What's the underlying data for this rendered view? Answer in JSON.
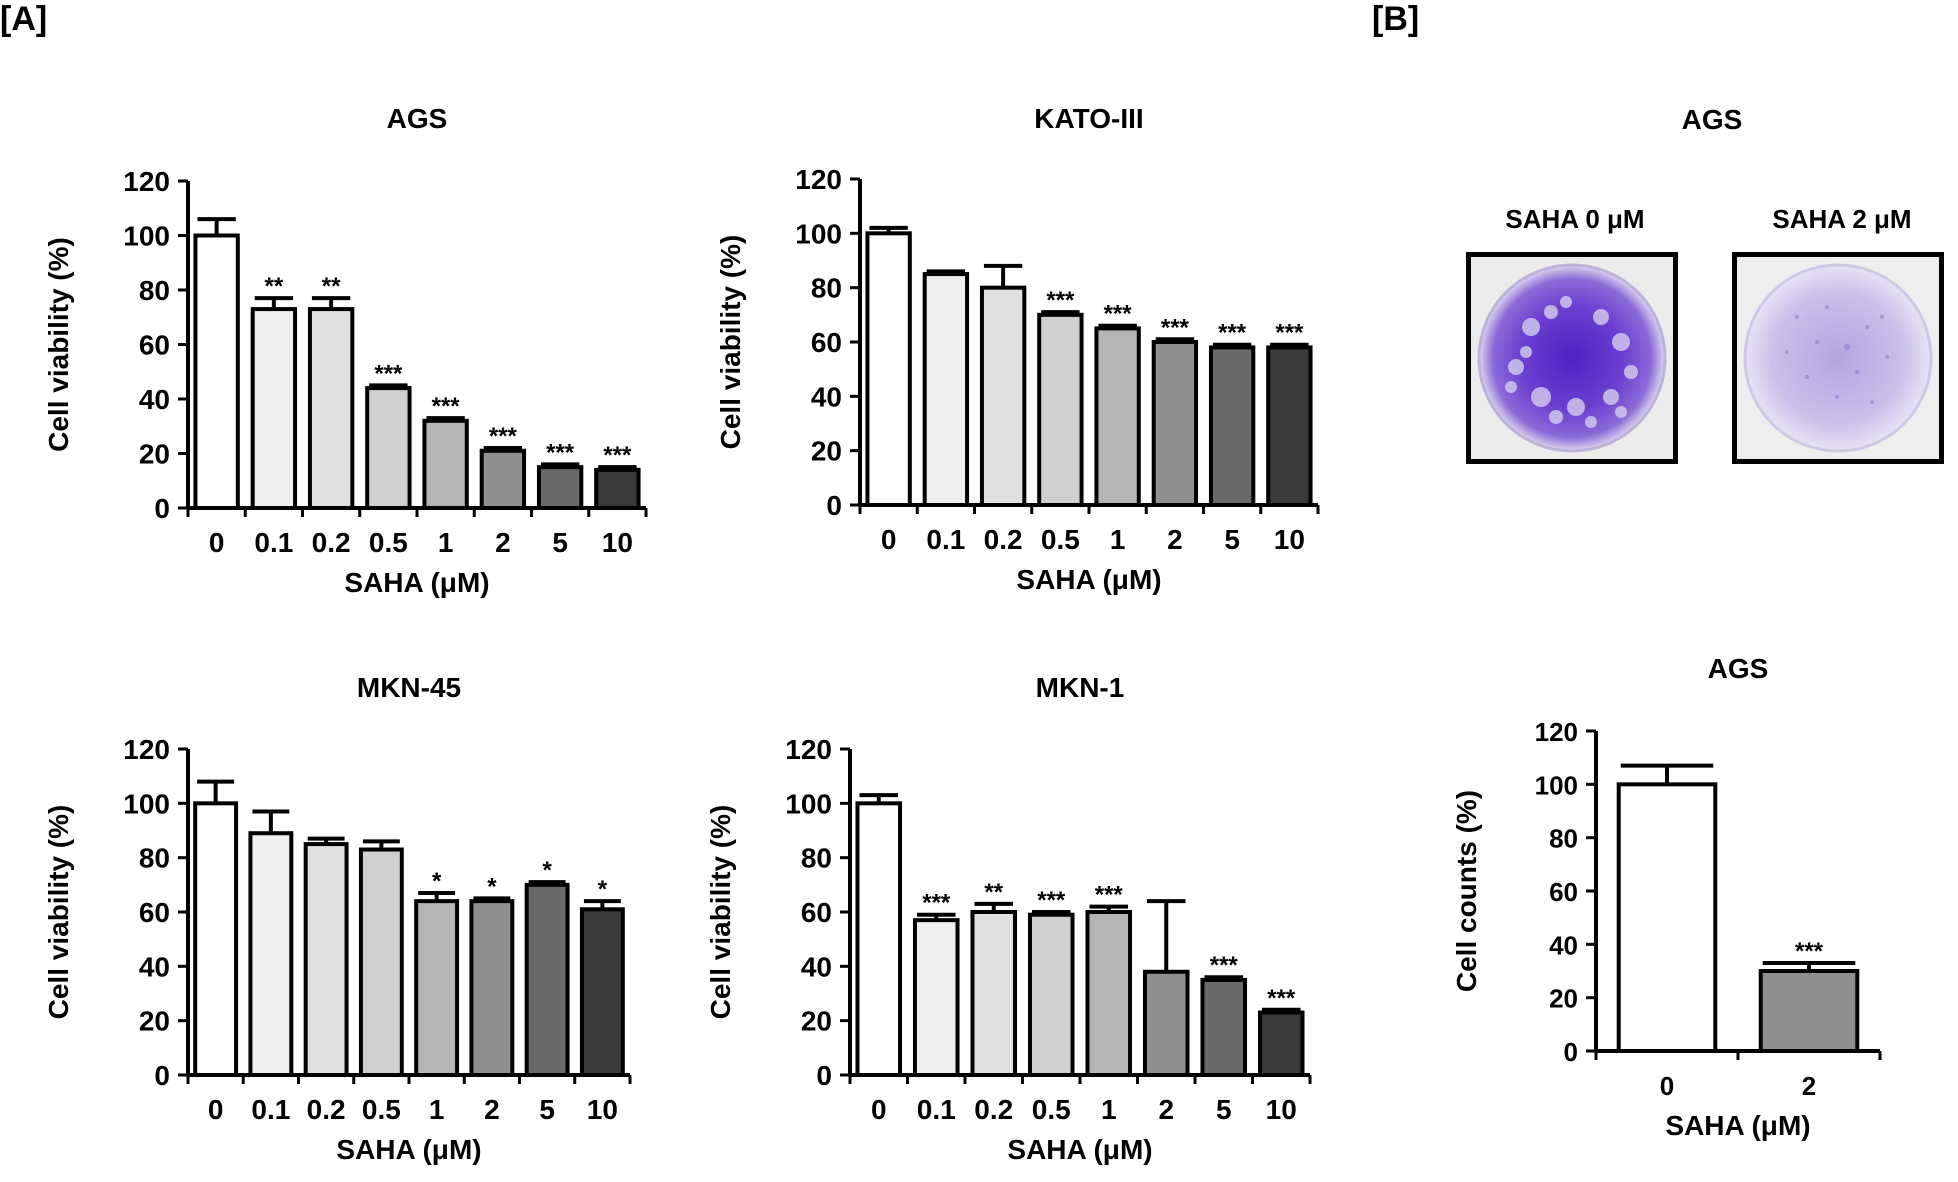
{
  "panel_labels": {
    "a": "[A]",
    "b": "[B]"
  },
  "colony_assay": {
    "title": "AGS",
    "images": [
      {
        "label": "SAHA 0 μM",
        "stain": "dense"
      },
      {
        "label": "SAHA 2 μM",
        "stain": "sparse"
      }
    ],
    "colors": {
      "dense_stain": "#6a3fd0",
      "sparse_stain": "#c3b9e6",
      "background": "#f4f4f4"
    }
  },
  "chart_data": [
    {
      "id": "ags",
      "type": "bar",
      "title": "AGS",
      "xlabel": "SAHA (μM)",
      "ylabel": "Cell viability (%)",
      "ylim": [
        0,
        120
      ],
      "yticks": [
        0,
        20,
        40,
        60,
        80,
        100,
        120
      ],
      "categories": [
        "0",
        "0.1",
        "0.2",
        "0.5",
        "1",
        "2",
        "5",
        "10"
      ],
      "values": [
        100,
        73,
        73,
        44,
        32,
        21,
        15,
        14
      ],
      "errors": [
        6,
        4,
        4,
        1,
        1,
        1,
        1,
        1
      ],
      "significance": [
        "",
        "**",
        "**",
        "***",
        "***",
        "***",
        "***",
        "***"
      ],
      "colors": [
        "#ffffff",
        "#efefef",
        "#e0e0e0",
        "#cfcfcf",
        "#b5b5b5",
        "#8f8f8f",
        "#6a6a6a",
        "#3a3a3a"
      ],
      "grid": false
    },
    {
      "id": "kato",
      "type": "bar",
      "title": "KATO-III",
      "xlabel": "SAHA (μM)",
      "ylabel": "Cell viability (%)",
      "ylim": [
        0,
        120
      ],
      "yticks": [
        0,
        20,
        40,
        60,
        80,
        100,
        120
      ],
      "categories": [
        "0",
        "0.1",
        "0.2",
        "0.5",
        "1",
        "2",
        "5",
        "10"
      ],
      "values": [
        100,
        85,
        80,
        70,
        65,
        60,
        58,
        58
      ],
      "errors": [
        2,
        1,
        8,
        1,
        1,
        1,
        1,
        1
      ],
      "significance": [
        "",
        "",
        "",
        "***",
        "***",
        "***",
        "***",
        "***"
      ],
      "colors": [
        "#ffffff",
        "#efefef",
        "#e0e0e0",
        "#cfcfcf",
        "#b5b5b5",
        "#8f8f8f",
        "#6a6a6a",
        "#3a3a3a"
      ],
      "grid": false
    },
    {
      "id": "mkn45",
      "type": "bar",
      "title": "MKN-45",
      "xlabel": "SAHA (μM)",
      "ylabel": "Cell viability (%)",
      "ylim": [
        0,
        120
      ],
      "yticks": [
        0,
        20,
        40,
        60,
        80,
        100,
        120
      ],
      "categories": [
        "0",
        "0.1",
        "0.2",
        "0.5",
        "1",
        "2",
        "5",
        "10"
      ],
      "values": [
        100,
        89,
        85,
        83,
        64,
        64,
        70,
        61
      ],
      "errors": [
        8,
        8,
        2,
        3,
        3,
        1,
        1,
        3
      ],
      "significance": [
        "",
        "",
        "",
        "",
        "*",
        "*",
        "*",
        "*"
      ],
      "colors": [
        "#ffffff",
        "#efefef",
        "#e0e0e0",
        "#cfcfcf",
        "#b5b5b5",
        "#8f8f8f",
        "#6a6a6a",
        "#3a3a3a"
      ],
      "grid": false
    },
    {
      "id": "mkn1",
      "type": "bar",
      "title": "MKN-1",
      "xlabel": "SAHA (μM)",
      "ylabel": "Cell viability (%)",
      "ylim": [
        0,
        120
      ],
      "yticks": [
        0,
        20,
        40,
        60,
        80,
        100,
        120
      ],
      "categories": [
        "0",
        "0.1",
        "0.2",
        "0.5",
        "1",
        "2",
        "5",
        "10"
      ],
      "values": [
        100,
        57,
        60,
        59,
        60,
        38,
        35,
        23
      ],
      "errors": [
        3,
        2,
        3,
        1,
        2,
        26,
        1,
        1
      ],
      "significance": [
        "",
        "***",
        "**",
        "***",
        "***",
        "",
        "***",
        "***"
      ],
      "colors": [
        "#ffffff",
        "#efefef",
        "#e0e0e0",
        "#cfcfcf",
        "#b5b5b5",
        "#8f8f8f",
        "#6a6a6a",
        "#3a3a3a"
      ],
      "grid": false
    },
    {
      "id": "counts",
      "type": "bar",
      "title": "AGS",
      "xlabel": "SAHA (μM)",
      "ylabel": "Cell counts (%)",
      "ylim": [
        0,
        120
      ],
      "yticks": [
        0,
        20,
        40,
        60,
        80,
        100,
        120
      ],
      "categories": [
        "0",
        "2"
      ],
      "values": [
        100,
        30
      ],
      "errors": [
        7,
        3
      ],
      "significance": [
        "",
        "***"
      ],
      "colors": [
        "#ffffff",
        "#8f8f8f"
      ],
      "grid": false
    }
  ]
}
